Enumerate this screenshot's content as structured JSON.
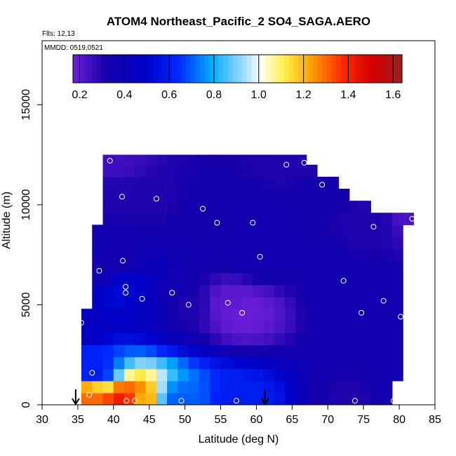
{
  "chart_data": {
    "type": "heatmap",
    "title": "ATOM4 Northeast_Pacific_2 SO4_SAGA.AERO",
    "flights_label": "Flts: 12,13",
    "mmdd_label": "MMDD: 0519,0521",
    "xlabel": "Latitude (deg N)",
    "ylabel": "Altitude (m)",
    "xlim": [
      30,
      85
    ],
    "ylim": [
      0,
      18200
    ],
    "x_ticks": [
      30,
      35,
      40,
      45,
      50,
      55,
      60,
      65,
      70,
      75,
      80,
      85
    ],
    "x_tick_labels": [
      "30",
      "35",
      "40",
      "45",
      "50",
      "55",
      "60",
      "65",
      "70",
      "75",
      "80",
      "85"
    ],
    "y_ticks": [
      0,
      5000,
      10000,
      15000
    ],
    "y_tick_labels": [
      "0",
      "5000",
      "10000",
      "15000"
    ],
    "colorbar": {
      "range": [
        0.17,
        1.64
      ],
      "ticks": [
        0.2,
        0.4,
        0.6,
        0.8,
        1.0,
        1.2,
        1.4,
        1.6
      ],
      "tick_labels": [
        "0.2",
        "0.4",
        "0.6",
        "0.8",
        "1.0",
        "1.2",
        "1.4",
        "1.6"
      ]
    },
    "field_x_edges": [
      35.5,
      37,
      38.5,
      40,
      41.5,
      43,
      44.5,
      46,
      47.5,
      49,
      50.5,
      52,
      53.5,
      55,
      56.5,
      58,
      59.5,
      61,
      62.5,
      64,
      65.5,
      67,
      68.5,
      70,
      71.5,
      73,
      74.5,
      76,
      77.5,
      79,
      80.5,
      82
    ],
    "field_y_levels": [
      0,
      600,
      1200,
      1800,
      2400,
      3000,
      3600,
      4200,
      4800,
      5400,
      6000,
      6600,
      7200,
      7800,
      8400,
      9000,
      9600,
      10200,
      10800,
      11400,
      12000,
      12500
    ],
    "domain_top_altitude": [
      [
        36,
        4200
      ],
      [
        37,
        6700
      ],
      [
        38,
        9500
      ],
      [
        39,
        12400
      ],
      [
        66,
        12400
      ],
      [
        67,
        12000
      ],
      [
        70,
        11300
      ],
      [
        74,
        10300
      ],
      [
        77,
        9600
      ],
      [
        80,
        9400
      ],
      [
        82,
        9400
      ]
    ],
    "domain_right_latitude": [
      [
        0,
        79.2
      ],
      [
        2000,
        80.2
      ],
      [
        4000,
        80.5
      ],
      [
        5500,
        80.5
      ],
      [
        6000,
        80.5
      ],
      [
        7000,
        80.2
      ],
      [
        8500,
        80.3
      ],
      [
        9200,
        82
      ],
      [
        9600,
        82
      ],
      [
        12500,
        70
      ]
    ],
    "samples": [
      {
        "lat": 35.5,
        "alt": 4100,
        "so4": 0.45
      },
      {
        "lat": 37.0,
        "alt": 1600,
        "so4": 0.6
      },
      {
        "lat": 36.6,
        "alt": 500,
        "so4": 1.3
      },
      {
        "lat": 38.0,
        "alt": 6700,
        "so4": 0.35
      },
      {
        "lat": 39.5,
        "alt": 12200,
        "so4": 0.25
      },
      {
        "lat": 41.2,
        "alt": 10400,
        "so4": 0.3
      },
      {
        "lat": 41.3,
        "alt": 7200,
        "so4": 0.35
      },
      {
        "lat": 41.7,
        "alt": 5900,
        "so4": 0.5
      },
      {
        "lat": 41.7,
        "alt": 5600,
        "so4": 0.55
      },
      {
        "lat": 41.8,
        "alt": 200,
        "so4": 1.45
      },
      {
        "lat": 43.0,
        "alt": 200,
        "so4": 1.2
      },
      {
        "lat": 44.0,
        "alt": 5300,
        "so4": 0.45
      },
      {
        "lat": 46.0,
        "alt": 10300,
        "so4": 0.3
      },
      {
        "lat": 48.2,
        "alt": 5600,
        "so4": 0.35
      },
      {
        "lat": 49.5,
        "alt": 200,
        "so4": 0.7
      },
      {
        "lat": 50.5,
        "alt": 5000,
        "so4": 0.3
      },
      {
        "lat": 52.5,
        "alt": 9800,
        "so4": 0.33
      },
      {
        "lat": 54.5,
        "alt": 9100,
        "so4": 0.33
      },
      {
        "lat": 56.0,
        "alt": 5100,
        "so4": 0.2
      },
      {
        "lat": 57.2,
        "alt": 200,
        "so4": 0.6
      },
      {
        "lat": 58.0,
        "alt": 4600,
        "so4": 0.18
      },
      {
        "lat": 59.5,
        "alt": 9100,
        "so4": 0.35
      },
      {
        "lat": 60.5,
        "alt": 7400,
        "so4": 0.35
      },
      {
        "lat": 64.2,
        "alt": 12000,
        "so4": 0.3
      },
      {
        "lat": 66.7,
        "alt": 12100,
        "so4": 0.3
      },
      {
        "lat": 69.2,
        "alt": 11000,
        "so4": 0.33
      },
      {
        "lat": 72.2,
        "alt": 6200,
        "so4": 0.35
      },
      {
        "lat": 73.8,
        "alt": 200,
        "so4": 0.3
      },
      {
        "lat": 74.7,
        "alt": 4600,
        "so4": 0.35
      },
      {
        "lat": 76.4,
        "alt": 8900,
        "so4": 0.3
      },
      {
        "lat": 77.8,
        "alt": 5200,
        "so4": 0.35
      },
      {
        "lat": 79.2,
        "alt": 200,
        "so4": 0.35
      },
      {
        "lat": 80.2,
        "alt": 4400,
        "so4": 0.35
      },
      {
        "lat": 81.8,
        "alt": 9300,
        "so4": 0.23
      }
    ],
    "markers": [
      {
        "type": "arrow-down",
        "lat": 34.7,
        "alt": 0
      },
      {
        "type": "arrow-down",
        "lat": 61.2,
        "alt": 0
      }
    ]
  }
}
